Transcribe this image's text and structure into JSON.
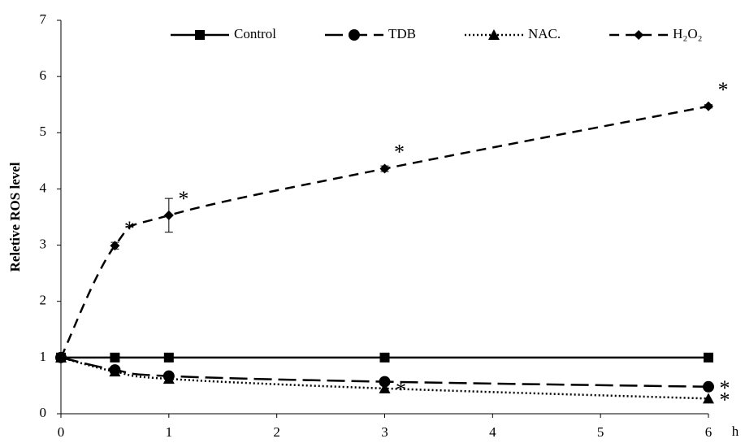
{
  "chart_data": {
    "type": "line",
    "y_label": "Reletive ROS level",
    "x_label": "h",
    "x": [
      0,
      0.5,
      1,
      3,
      6
    ],
    "xlim": [
      0,
      6
    ],
    "xticks": [
      0,
      1,
      2,
      3,
      4,
      5,
      6
    ],
    "ylim": [
      0,
      7
    ],
    "yticks": [
      0,
      1,
      2,
      3,
      4,
      5,
      6,
      7
    ],
    "grid": false,
    "legend": "top",
    "series": [
      {
        "name": "Control",
        "color": "#000000",
        "dash": "solid",
        "marker": "square",
        "values": [
          1,
          1,
          1,
          1,
          1
        ]
      },
      {
        "name": "TDB",
        "color": "#000000",
        "dash": "long-dash",
        "marker": "circle",
        "values": [
          1,
          0.78,
          0.67,
          0.57,
          0.48
        ],
        "annotations": [
          {
            "x": 6,
            "text": "*"
          }
        ]
      },
      {
        "name": "NAC.",
        "color": "#000000",
        "dash": "dot",
        "marker": "triangle",
        "values": [
          1,
          0.75,
          0.62,
          0.45,
          0.27
        ],
        "annotations": [
          {
            "x": 3,
            "text": "*"
          },
          {
            "x": 6,
            "text": "*"
          }
        ]
      },
      {
        "name": "H₂O₂",
        "color": "#000000",
        "dash": "dash",
        "marker": "diamond",
        "values": [
          1,
          2.99,
          3.53,
          4.36,
          5.47
        ],
        "errors": [
          0,
          0.06,
          0.3,
          0.05,
          0.03
        ],
        "annotations": [
          {
            "x": 0.5,
            "text": "*"
          },
          {
            "x": 1,
            "text": "*"
          },
          {
            "x": 3,
            "text": "*"
          },
          {
            "x": 6,
            "text": "*"
          }
        ]
      }
    ]
  }
}
